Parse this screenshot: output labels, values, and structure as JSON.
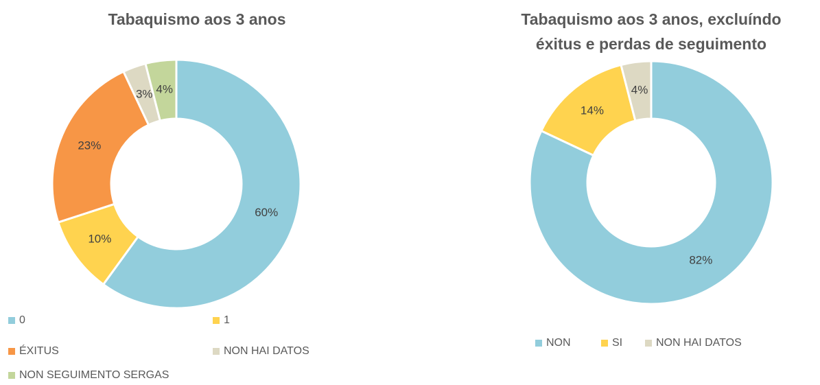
{
  "chart_data": [
    {
      "type": "donut",
      "title": [
        "Tabaquismo aos 3 anos"
      ],
      "categories": [
        "0",
        "1",
        "ÉXITUS",
        "NON HAI DATOS",
        "NON SEGUIMENTO SERGAS"
      ],
      "values": [
        60,
        10,
        23,
        3,
        4
      ],
      "value_labels": [
        "60%",
        "10%",
        "23%",
        "3%",
        "4%"
      ],
      "colors": [
        "#92cddc",
        "#ffd34f",
        "#f79646",
        "#ddd9c3",
        "#c3d69b"
      ],
      "legend": "bottom"
    },
    {
      "type": "donut",
      "title": [
        "Tabaquismo aos 3 anos, excluíndo",
        "éxitus e perdas de seguimento"
      ],
      "categories": [
        "NON",
        "SI",
        "NON HAI DATOS"
      ],
      "values": [
        82,
        14,
        4
      ],
      "value_labels": [
        "82%",
        "14%",
        "4%"
      ],
      "colors": [
        "#92cddc",
        "#ffd34f",
        "#ddd9c3"
      ],
      "legend": "bottom"
    }
  ]
}
